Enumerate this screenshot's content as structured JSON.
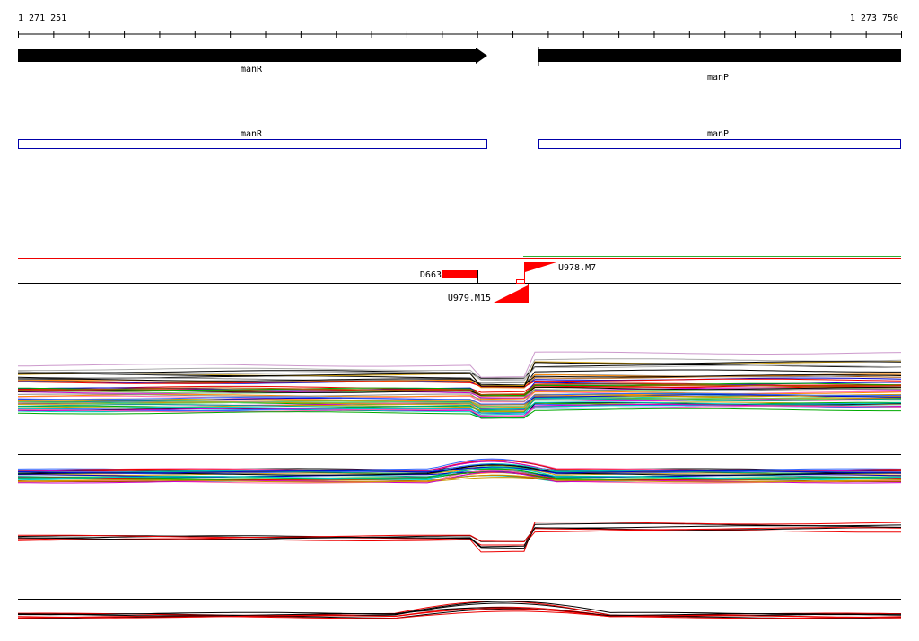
{
  "ruler": {
    "start": "1 271 251",
    "end": "1 273 750"
  },
  "genes": [
    {
      "label": "manR"
    },
    {
      "label": "manP"
    }
  ],
  "features": [
    {
      "label": "manR"
    },
    {
      "label": "manP"
    }
  ],
  "probes": [
    {
      "label": "D663"
    },
    {
      "label": "U978.M7"
    },
    {
      "label": "U979.M15"
    }
  ]
}
